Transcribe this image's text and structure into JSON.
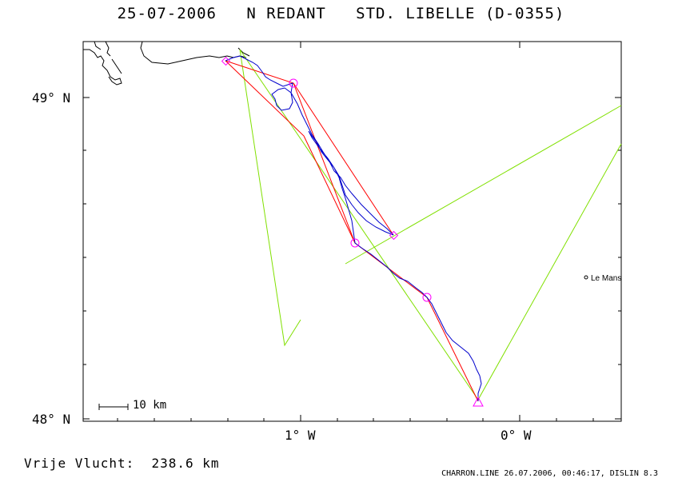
{
  "header": {
    "title": "25-07-2006   N REDANT   STD. LIBELLE (D-0355)"
  },
  "axes": {
    "lat_labels": [
      "49° N",
      "48° N"
    ],
    "lon_labels": [
      "1° W",
      "0° W"
    ]
  },
  "map": {
    "city_label": "Le Mans",
    "scale_label": "10 km"
  },
  "footer": {
    "distance": "Vrije Vlucht:  238.6 km",
    "credit": "CHARRON.LINE 26.07.2006, 00:46:17, DISLIN 8.3"
  },
  "colors": {
    "flight_track": "#0000cc",
    "task_lines": "#ff0000",
    "airspace_lines": "#80e000",
    "turnpoints": "#ff00ff",
    "frame": "#000000"
  }
}
